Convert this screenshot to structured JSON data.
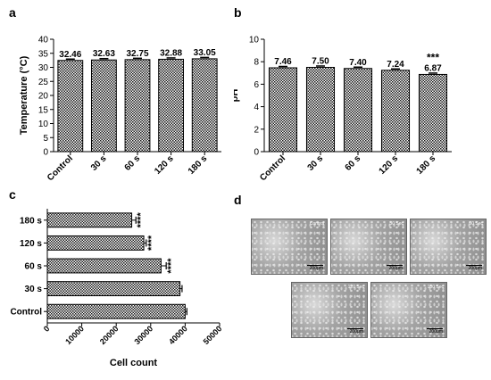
{
  "panels": {
    "a": "a",
    "b": "b",
    "c": "c",
    "d": "d"
  },
  "chart_data": [
    {
      "type": "bar",
      "categories": [
        "Control",
        "30 s",
        "60 s",
        "120 s",
        "180 s"
      ],
      "values": [
        32.46,
        32.63,
        32.75,
        32.88,
        33.05
      ],
      "value_labels": [
        "32.46",
        "32.63",
        "32.75",
        "32.88",
        "33.05"
      ],
      "ylabel": "Temperature (°C)",
      "ylim": [
        0,
        40
      ],
      "yticks": [
        0,
        5,
        10,
        15,
        20,
        25,
        30,
        35,
        40
      ],
      "annotations": [
        "",
        "",
        "",
        "",
        ""
      ]
    },
    {
      "type": "bar",
      "categories": [
        "Control",
        "30 s",
        "60 s",
        "120 s",
        "180 s"
      ],
      "values": [
        7.46,
        7.5,
        7.4,
        7.24,
        6.87
      ],
      "value_labels": [
        "7.46",
        "7.50",
        "7.40",
        "7.24",
        "6.87"
      ],
      "ylabel": "pH",
      "ylim": [
        0,
        10
      ],
      "yticks": [
        0,
        2,
        4,
        6,
        8,
        10
      ],
      "annotations": [
        "",
        "",
        "",
        "",
        "***"
      ]
    },
    {
      "type": "bar",
      "orientation": "horizontal",
      "categories": [
        "180 s",
        "120 s",
        "60 s",
        "30 s",
        "Control"
      ],
      "values": [
        24500,
        28000,
        33000,
        38500,
        40000
      ],
      "errors": [
        1200,
        700,
        1500,
        600,
        500
      ],
      "annotations": [
        "****",
        "****",
        "****",
        "",
        ""
      ],
      "xlabel": "Cell count",
      "xlim": [
        0,
        50000
      ],
      "xticks": [
        0,
        10000,
        20000,
        30000,
        40000,
        50000
      ]
    }
  ],
  "micrographs": [
    {
      "condition": "Control",
      "scale": "200μm"
    },
    {
      "condition": "30 Sec",
      "scale": "200μm"
    },
    {
      "condition": "60 Sec",
      "scale": "200μm"
    },
    {
      "condition": "120 Sec",
      "scale": "200μm"
    },
    {
      "condition": "180 Sec",
      "scale": "200μm"
    }
  ]
}
